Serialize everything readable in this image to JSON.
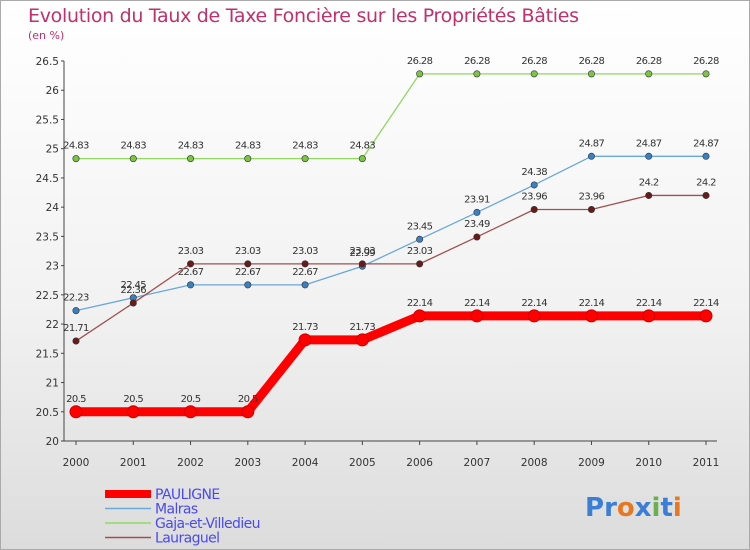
{
  "header": {
    "title": "Evolution du Taux de Taxe Foncière sur les Propriétés Bâties",
    "unit": "(en %)"
  },
  "logo": {
    "letters": [
      "P",
      "r",
      "o",
      "x",
      "i",
      "t",
      "i"
    ],
    "colors": [
      "#3a7fd5",
      "#3a7fd5",
      "#e87722",
      "#3a7fd5",
      "#6ab04c",
      "#3a7fd5",
      "#e87722"
    ]
  },
  "chart_data": {
    "type": "line",
    "categories": [
      "2000",
      "2001",
      "2002",
      "2003",
      "2004",
      "2005",
      "2006",
      "2007",
      "2008",
      "2009",
      "2010",
      "2011"
    ],
    "ylim": [
      20,
      26.5
    ],
    "yticks": [
      "20",
      "20.5",
      "21",
      "21.5",
      "22",
      "22.5",
      "23",
      "23.5",
      "24",
      "24.5",
      "25",
      "25.5",
      "26",
      "26.5"
    ],
    "grid": false,
    "legend_position": "bottom-left",
    "series": [
      {
        "name": "PAULIGNE",
        "color": "#ff0000",
        "bold": true,
        "values": [
          20.5,
          20.5,
          20.5,
          20.5,
          21.73,
          21.73,
          22.14,
          22.14,
          22.14,
          22.14,
          22.14,
          22.14
        ],
        "labels": [
          "20.5",
          "20.5",
          "20.5",
          "20.5",
          "21.73",
          "21.73",
          "22.14",
          "22.14",
          "22.14",
          "22.14",
          "22.14",
          "22.14"
        ]
      },
      {
        "name": "Malras",
        "color": "#6aa8d8",
        "marker": "#3a7fc0",
        "values": [
          22.23,
          22.45,
          22.67,
          22.67,
          22.67,
          22.99,
          23.45,
          23.91,
          24.38,
          24.87,
          24.87,
          24.87
        ],
        "labels": [
          "22.23",
          "22.45",
          "22.67",
          "22.67",
          "22.67",
          "22.99",
          "23.45",
          "23.91",
          "24.38",
          "24.87",
          "24.87",
          "24.87"
        ]
      },
      {
        "name": "Gaja-et-Villedieu",
        "color": "#90d860",
        "marker": "#7cc444",
        "values": [
          24.83,
          24.83,
          24.83,
          24.83,
          24.83,
          24.83,
          26.28,
          26.28,
          26.28,
          26.28,
          26.28,
          26.28
        ],
        "labels": [
          "24.83",
          "24.83",
          "24.83",
          "24.83",
          "24.83",
          "24.83",
          "26.28",
          "26.28",
          "26.28",
          "26.28",
          "26.28",
          "26.28"
        ]
      },
      {
        "name": "Lauraguel",
        "color": "#a05050",
        "marker": "#6a1a1a",
        "values": [
          21.71,
          22.36,
          23.03,
          23.03,
          23.03,
          23.03,
          23.03,
          23.49,
          23.96,
          23.96,
          24.2,
          24.2
        ],
        "labels": [
          "21.71",
          "22.36",
          "23.03",
          "23.03",
          "23.03",
          "23.03",
          "23.03",
          "23.49",
          "23.96",
          "23.96",
          "24.2",
          "24.2"
        ]
      }
    ]
  }
}
